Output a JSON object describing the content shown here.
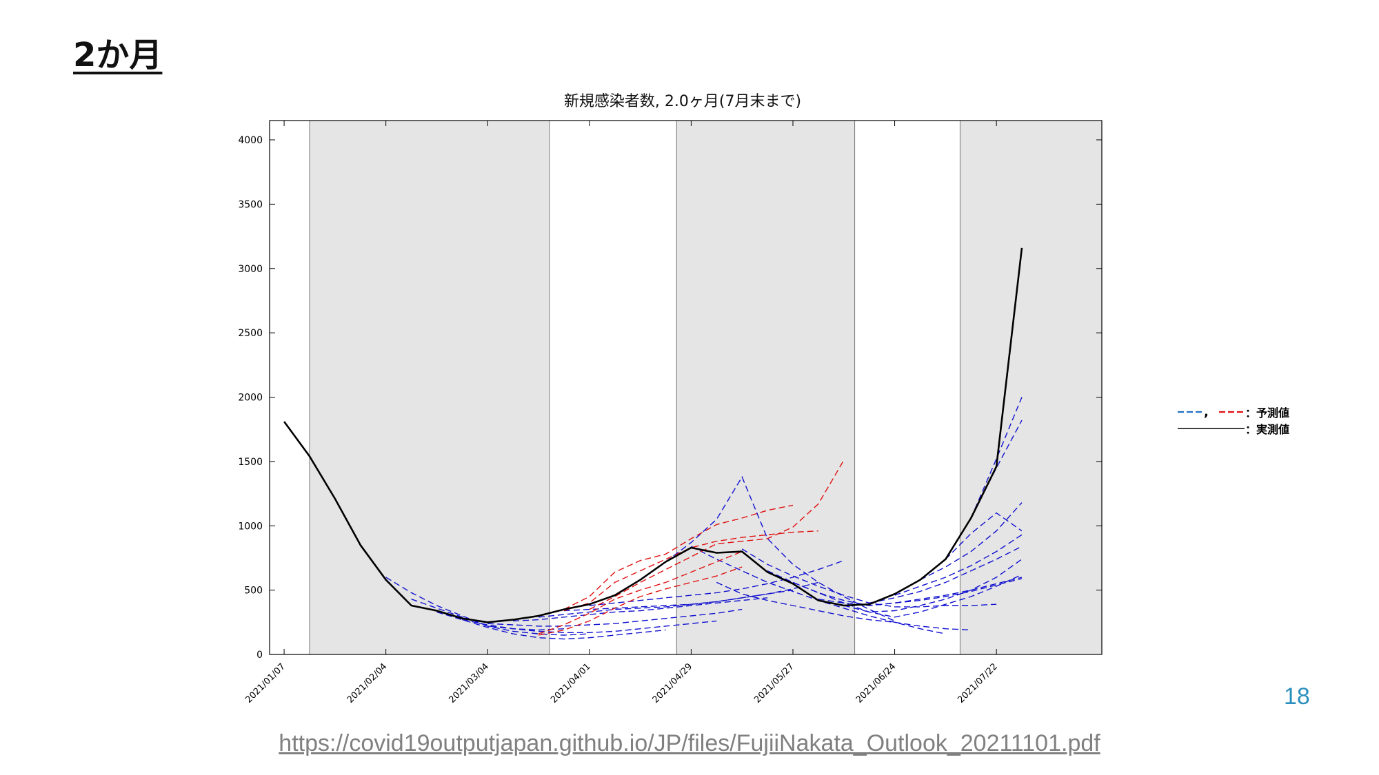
{
  "slide": {
    "title": "2か月",
    "page_number": "18",
    "source_url": "https://covid19outputjapan.github.io/JP/files/FujiiNakata_Outlook_20211101.pdf"
  },
  "legend": {
    "separator": ",",
    "forecast_label": "：予測値",
    "actual_label": "：実測値"
  },
  "colors": {
    "actual": "#000000",
    "forecast_blue": "#1010d0",
    "forecast_red": "#e01010",
    "legend_blue": "#1f6fc0",
    "shade": "#e5e5e5",
    "page_number": "#2a8fbd",
    "link": "#808080"
  },
  "chart_data": {
    "type": "line",
    "title": "新規感染者数, 2.0ヶ月(7月末まで)",
    "xlabel": "",
    "ylabel": "",
    "x_type": "date",
    "xlim": [
      "2021-01-03",
      "2021-08-20"
    ],
    "ylim": [
      0,
      4150
    ],
    "yticks": [
      0,
      500,
      1000,
      1500,
      2000,
      2500,
      3000,
      3500,
      4000
    ],
    "xticks": [
      "2021/01/07",
      "2021/02/04",
      "2021/03/04",
      "2021/04/01",
      "2021/04/29",
      "2021/05/27",
      "2021/06/24",
      "2021/07/22"
    ],
    "grid": false,
    "legend_position": "outside-right",
    "shaded_periods": [
      [
        "2021-01-14",
        "2021-03-21"
      ],
      [
        "2021-04-25",
        "2021-06-13"
      ],
      [
        "2021-07-12",
        "2021-08-20"
      ]
    ],
    "actual": {
      "style": "solid",
      "x": [
        "2021-01-07",
        "2021-01-14",
        "2021-01-21",
        "2021-01-28",
        "2021-02-04",
        "2021-02-11",
        "2021-02-18",
        "2021-02-25",
        "2021-03-04",
        "2021-03-11",
        "2021-03-18",
        "2021-03-25",
        "2021-04-01",
        "2021-04-08",
        "2021-04-15",
        "2021-04-22",
        "2021-04-29",
        "2021-05-06",
        "2021-05-13",
        "2021-05-20",
        "2021-05-27",
        "2021-06-03",
        "2021-06-10",
        "2021-06-17",
        "2021-06-24",
        "2021-07-01",
        "2021-07-08",
        "2021-07-15",
        "2021-07-22",
        "2021-07-29"
      ],
      "y": [
        1810,
        1540,
        1210,
        850,
        580,
        380,
        340,
        280,
        250,
        270,
        300,
        350,
        390,
        460,
        580,
        720,
        830,
        790,
        800,
        640,
        550,
        420,
        380,
        390,
        470,
        580,
        740,
        1060,
        1460,
        3160
      ]
    },
    "forecasts_blue": [
      {
        "x": [
          "2021-02-04",
          "2021-02-11",
          "2021-02-18",
          "2021-02-25",
          "2021-03-04",
          "2021-03-11",
          "2021-03-18",
          "2021-03-25"
        ],
        "y": [
          600,
          480,
          380,
          300,
          220,
          200,
          190,
          200
        ]
      },
      {
        "x": [
          "2021-02-11",
          "2021-02-18",
          "2021-02-25",
          "2021-03-04",
          "2021-03-11",
          "2021-03-18",
          "2021-03-25",
          "2021-04-01"
        ],
        "y": [
          430,
          360,
          290,
          220,
          180,
          160,
          150,
          160
        ]
      },
      {
        "x": [
          "2021-02-18",
          "2021-02-25",
          "2021-03-04",
          "2021-03-11",
          "2021-03-18",
          "2021-03-25",
          "2021-04-01",
          "2021-04-08",
          "2021-04-15",
          "2021-04-22"
        ],
        "y": [
          330,
          270,
          210,
          160,
          130,
          120,
          130,
          150,
          170,
          190
        ]
      },
      {
        "x": [
          "2021-02-25",
          "2021-03-04",
          "2021-03-11",
          "2021-03-18",
          "2021-03-25",
          "2021-04-01",
          "2021-04-08",
          "2021-04-15",
          "2021-04-22",
          "2021-04-29",
          "2021-05-06"
        ],
        "y": [
          270,
          230,
          200,
          180,
          170,
          170,
          180,
          200,
          220,
          240,
          260
        ]
      },
      {
        "x": [
          "2021-03-04",
          "2021-03-11",
          "2021-03-18",
          "2021-03-25",
          "2021-04-01",
          "2021-04-08",
          "2021-04-15",
          "2021-04-22",
          "2021-04-29",
          "2021-05-06",
          "2021-05-13"
        ],
        "y": [
          240,
          230,
          220,
          220,
          230,
          240,
          260,
          280,
          300,
          320,
          350
        ]
      },
      {
        "x": [
          "2021-03-11",
          "2021-03-18",
          "2021-03-25",
          "2021-04-01",
          "2021-04-08",
          "2021-04-15",
          "2021-04-22",
          "2021-04-29",
          "2021-05-06",
          "2021-05-13",
          "2021-05-20"
        ],
        "y": [
          260,
          270,
          290,
          310,
          330,
          340,
          360,
          380,
          400,
          420,
          440
        ]
      },
      {
        "x": [
          "2021-03-18",
          "2021-03-25",
          "2021-04-01",
          "2021-04-08",
          "2021-04-15",
          "2021-04-22",
          "2021-04-29",
          "2021-05-06",
          "2021-05-13",
          "2021-05-20",
          "2021-05-27"
        ],
        "y": [
          290,
          310,
          330,
          350,
          360,
          370,
          390,
          410,
          440,
          470,
          500
        ]
      },
      {
        "x": [
          "2021-03-25",
          "2021-04-01",
          "2021-04-08",
          "2021-04-15",
          "2021-04-22",
          "2021-04-29",
          "2021-05-06",
          "2021-05-13",
          "2021-05-20",
          "2021-05-27",
          "2021-06-03"
        ],
        "y": [
          340,
          350,
          360,
          370,
          380,
          390,
          410,
          440,
          470,
          510,
          560
        ]
      },
      {
        "x": [
          "2021-04-01",
          "2021-04-08",
          "2021-04-15",
          "2021-04-22",
          "2021-04-29",
          "2021-05-06",
          "2021-05-13",
          "2021-05-20",
          "2021-05-27",
          "2021-06-03",
          "2021-06-10"
        ],
        "y": [
          380,
          400,
          420,
          440,
          460,
          480,
          510,
          550,
          600,
          660,
          730
        ]
      },
      {
        "x": [
          "2021-04-22",
          "2021-04-29",
          "2021-05-06",
          "2021-05-13",
          "2021-05-20",
          "2021-05-27",
          "2021-06-03",
          "2021-06-10",
          "2021-06-17",
          "2021-06-24"
        ],
        "y": [
          720,
          870,
          1050,
          1380,
          900,
          700,
          560,
          450,
          350,
          260
        ]
      },
      {
        "x": [
          "2021-04-29",
          "2021-05-06",
          "2021-05-13",
          "2021-05-20",
          "2021-05-27",
          "2021-06-03",
          "2021-06-10",
          "2021-06-17",
          "2021-06-24",
          "2021-07-01",
          "2021-07-08"
        ],
        "y": [
          840,
          740,
          650,
          560,
          490,
          420,
          360,
          300,
          250,
          200,
          160
        ]
      },
      {
        "x": [
          "2021-05-06",
          "2021-05-13",
          "2021-05-20",
          "2021-05-27",
          "2021-06-03",
          "2021-06-10",
          "2021-06-17",
          "2021-06-24",
          "2021-07-01",
          "2021-07-08",
          "2021-07-15"
        ],
        "y": [
          560,
          470,
          420,
          380,
          340,
          300,
          270,
          250,
          220,
          200,
          190
        ]
      },
      {
        "x": [
          "2021-05-13",
          "2021-05-20",
          "2021-05-27",
          "2021-06-03",
          "2021-06-10",
          "2021-06-17",
          "2021-06-24",
          "2021-07-01",
          "2021-07-08",
          "2021-07-15",
          "2021-07-22"
        ],
        "y": [
          820,
          700,
          610,
          530,
          460,
          400,
          370,
          370,
          380,
          380,
          390
        ]
      },
      {
        "x": [
          "2021-05-20",
          "2021-05-27",
          "2021-06-03",
          "2021-06-10",
          "2021-06-17",
          "2021-06-24",
          "2021-07-01",
          "2021-07-08",
          "2021-07-15",
          "2021-07-22",
          "2021-07-29"
        ],
        "y": [
          650,
          560,
          480,
          400,
          330,
          290,
          330,
          390,
          450,
          530,
          620
        ]
      },
      {
        "x": [
          "2021-05-27",
          "2021-06-03",
          "2021-06-10",
          "2021-06-17",
          "2021-06-24",
          "2021-07-01",
          "2021-07-08",
          "2021-07-15",
          "2021-07-22",
          "2021-07-29"
        ],
        "y": [
          560,
          480,
          420,
          380,
          400,
          430,
          460,
          500,
          550,
          600
        ]
      },
      {
        "x": [
          "2021-06-03",
          "2021-06-10",
          "2021-06-17",
          "2021-06-24",
          "2021-07-01",
          "2021-07-08",
          "2021-07-15",
          "2021-07-22",
          "2021-07-29"
        ],
        "y": [
          430,
          400,
          380,
          400,
          420,
          450,
          490,
          540,
          590
        ]
      },
      {
        "x": [
          "2021-06-10",
          "2021-06-17",
          "2021-06-24",
          "2021-07-01",
          "2021-07-08",
          "2021-07-15",
          "2021-07-22",
          "2021-07-29"
        ],
        "y": [
          380,
          330,
          340,
          380,
          430,
          500,
          600,
          740
        ]
      },
      {
        "x": [
          "2021-06-17",
          "2021-06-24",
          "2021-07-01",
          "2021-07-08",
          "2021-07-15",
          "2021-07-22",
          "2021-07-29"
        ],
        "y": [
          400,
          440,
          490,
          560,
          650,
          740,
          840
        ]
      },
      {
        "x": [
          "2021-06-24",
          "2021-07-01",
          "2021-07-08",
          "2021-07-15",
          "2021-07-22",
          "2021-07-29"
        ],
        "y": [
          460,
          530,
          600,
          690,
          800,
          930
        ]
      },
      {
        "x": [
          "2021-07-01",
          "2021-07-08",
          "2021-07-15",
          "2021-07-22",
          "2021-07-29"
        ],
        "y": [
          580,
          680,
          800,
          960,
          1180
        ]
      },
      {
        "x": [
          "2021-07-08",
          "2021-07-15",
          "2021-07-22",
          "2021-07-29"
        ],
        "y": [
          740,
          940,
          1100,
          960
        ]
      },
      {
        "x": [
          "2021-07-15",
          "2021-07-22",
          "2021-07-29"
        ],
        "y": [
          1060,
          1520,
          2000
        ]
      },
      {
        "x": [
          "2021-07-15",
          "2021-07-22",
          "2021-07-29"
        ],
        "y": [
          1060,
          1450,
          1820
        ]
      }
    ],
    "forecasts_red": [
      {
        "x": [
          "2021-03-25",
          "2021-04-01",
          "2021-04-08",
          "2021-04-15",
          "2021-04-22",
          "2021-04-29",
          "2021-05-06",
          "2021-05-13",
          "2021-05-20",
          "2021-05-27"
        ],
        "y": [
          350,
          450,
          640,
          730,
          780,
          900,
          1010,
          1060,
          1120,
          1160
        ]
      },
      {
        "x": [
          "2021-03-25",
          "2021-04-01",
          "2021-04-08",
          "2021-04-15",
          "2021-04-22",
          "2021-04-29",
          "2021-05-06",
          "2021-05-13",
          "2021-05-20",
          "2021-05-27",
          "2021-06-03"
        ],
        "y": [
          340,
          400,
          560,
          650,
          740,
          830,
          880,
          910,
          930,
          950,
          960
        ]
      },
      {
        "x": [
          "2021-04-01",
          "2021-04-08",
          "2021-04-15",
          "2021-04-22",
          "2021-04-29",
          "2021-05-06",
          "2021-05-13",
          "2021-05-20",
          "2021-05-27",
          "2021-06-03",
          "2021-06-10"
        ],
        "y": [
          350,
          450,
          560,
          660,
          760,
          860,
          880,
          900,
          990,
          1170,
          1510
        ]
      },
      {
        "x": [
          "2021-03-18",
          "2021-03-25",
          "2021-04-01",
          "2021-04-08",
          "2021-04-15",
          "2021-04-22",
          "2021-04-29",
          "2021-05-06",
          "2021-05-13"
        ],
        "y": [
          160,
          230,
          320,
          430,
          500,
          560,
          640,
          720,
          800
        ]
      },
      {
        "x": [
          "2021-03-18",
          "2021-03-25",
          "2021-04-01",
          "2021-04-08",
          "2021-04-15",
          "2021-04-22",
          "2021-04-29",
          "2021-05-06",
          "2021-05-13"
        ],
        "y": [
          150,
          190,
          260,
          360,
          450,
          510,
          560,
          610,
          680
        ]
      }
    ]
  }
}
